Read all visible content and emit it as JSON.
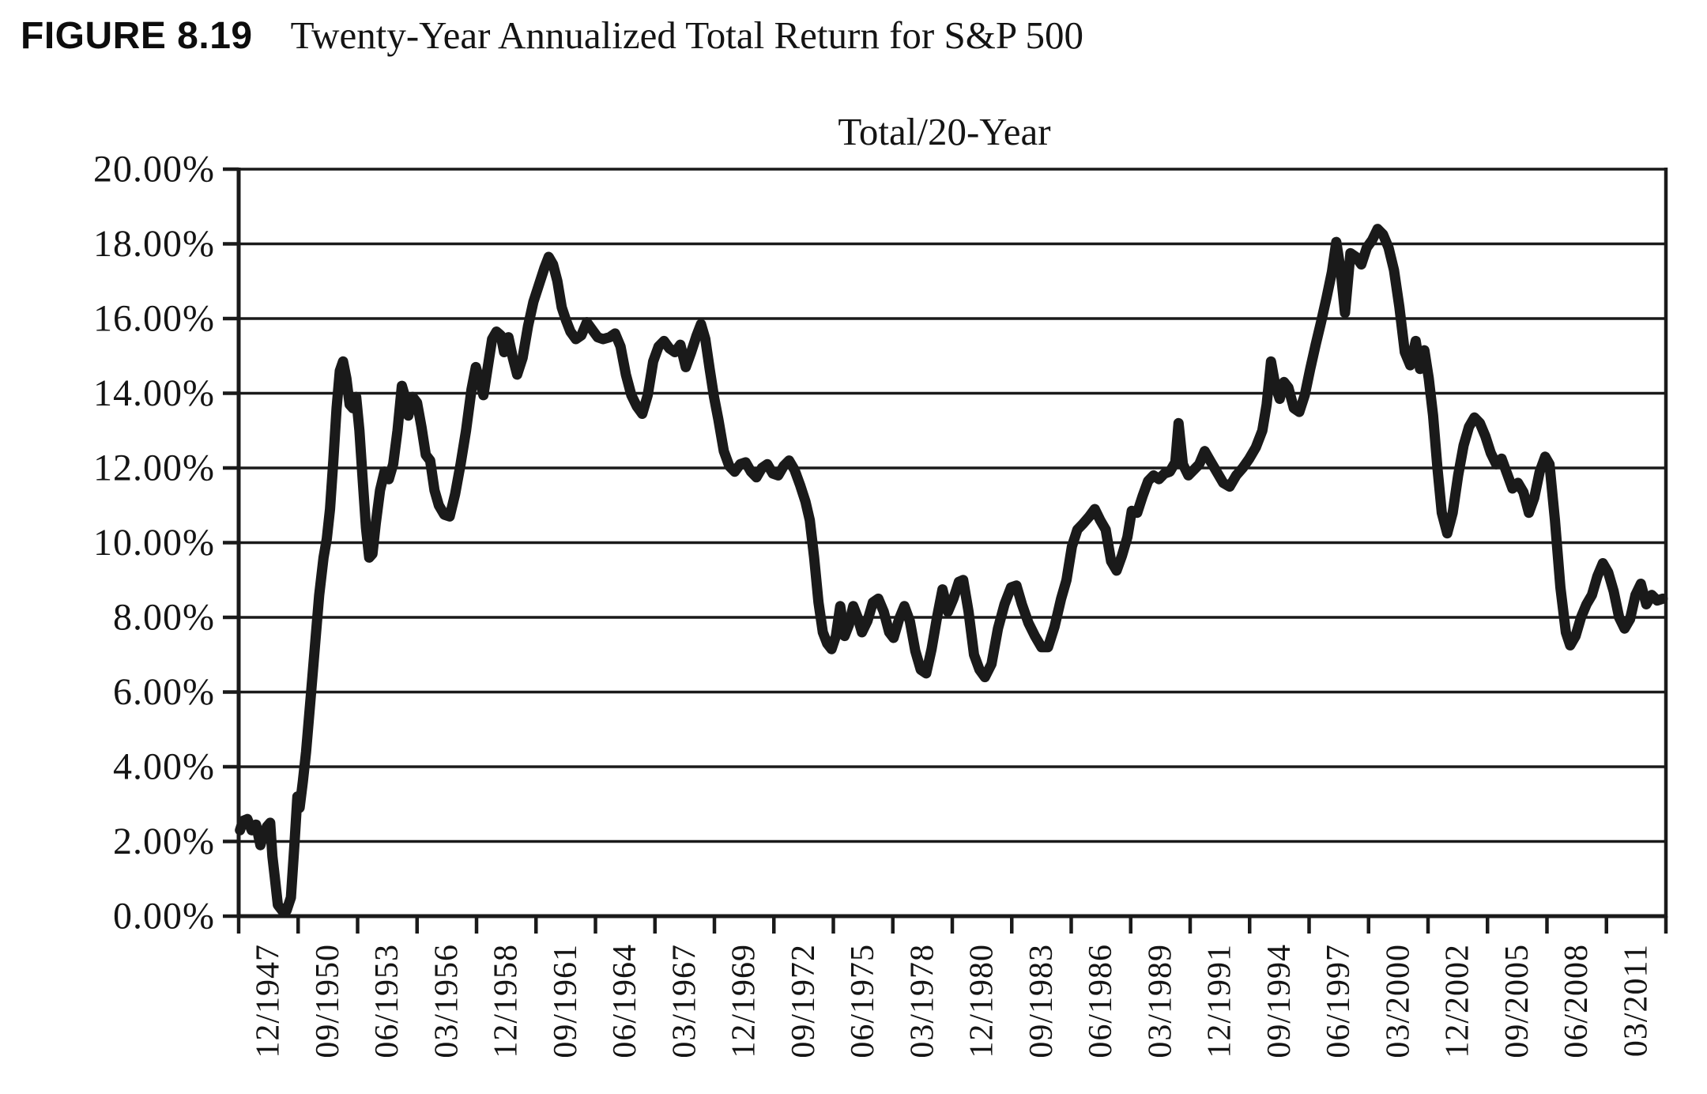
{
  "header": {
    "figure_label": "FIGURE 8.19",
    "title": "Twenty-Year Annualized Total Return for S&P 500"
  },
  "chart_data": {
    "type": "line",
    "title": "Total/20-Year",
    "series_name": "Total/20-Year",
    "xlabel": "",
    "ylabel": "",
    "ylim": [
      0,
      20
    ],
    "ytick_step": 2,
    "ytick_format": "0.00%",
    "ytick_labels": [
      "0.00%",
      "2.00%",
      "4.00%",
      "6.00%",
      "8.00%",
      "10.00%",
      "12.00%",
      "14.00%",
      "16.00%",
      "18.00%",
      "20.00%"
    ],
    "grid": "horizontal",
    "legend": "none",
    "line_color": "#1a1a1a",
    "ink_color": "#1a1a1a",
    "background_color": "#ffffff",
    "x_unit": "decimal_year",
    "xlim": [
      1947.9,
      2013.5
    ],
    "x_label_rotation": -90,
    "x_tick_labels": [
      "12/1947",
      "09/1950",
      "06/1953",
      "03/1956",
      "12/1958",
      "09/1961",
      "06/1964",
      "03/1967",
      "12/1969",
      "09/1972",
      "06/1975",
      "03/1978",
      "12/1980",
      "09/1983",
      "06/1986",
      "03/1989",
      "12/1991",
      "09/1994",
      "06/1997",
      "03/2000",
      "12/2002",
      "09/2005",
      "06/2008",
      "03/2011"
    ],
    "points": [
      [
        1947.96,
        2.3
      ],
      [
        1948.1,
        2.55
      ],
      [
        1948.3,
        2.6
      ],
      [
        1948.5,
        2.3
      ],
      [
        1948.7,
        2.45
      ],
      [
        1948.9,
        1.9
      ],
      [
        1949.05,
        2.2
      ],
      [
        1949.2,
        2.4
      ],
      [
        1949.35,
        2.5
      ],
      [
        1949.45,
        1.6
      ],
      [
        1949.55,
        1.1
      ],
      [
        1949.7,
        0.3
      ],
      [
        1949.9,
        0.15
      ],
      [
        1950.1,
        0.15
      ],
      [
        1950.3,
        0.5
      ],
      [
        1950.45,
        1.8
      ],
      [
        1950.6,
        3.2
      ],
      [
        1950.7,
        2.9
      ],
      [
        1950.85,
        3.6
      ],
      [
        1951.0,
        4.4
      ],
      [
        1951.2,
        5.8
      ],
      [
        1951.4,
        7.2
      ],
      [
        1951.6,
        8.6
      ],
      [
        1951.8,
        9.6
      ],
      [
        1951.95,
        10.1
      ],
      [
        1952.1,
        10.9
      ],
      [
        1952.25,
        12.2
      ],
      [
        1952.4,
        13.6
      ],
      [
        1952.55,
        14.6
      ],
      [
        1952.7,
        14.85
      ],
      [
        1952.85,
        14.4
      ],
      [
        1953.0,
        13.7
      ],
      [
        1953.15,
        13.6
      ],
      [
        1953.3,
        13.9
      ],
      [
        1953.45,
        13.0
      ],
      [
        1953.6,
        11.7
      ],
      [
        1953.75,
        10.4
      ],
      [
        1953.9,
        9.6
      ],
      [
        1954.05,
        9.7
      ],
      [
        1954.2,
        10.5
      ],
      [
        1954.4,
        11.4
      ],
      [
        1954.6,
        11.9
      ],
      [
        1954.8,
        11.7
      ],
      [
        1955.0,
        12.1
      ],
      [
        1955.2,
        13.0
      ],
      [
        1955.4,
        14.2
      ],
      [
        1955.55,
        13.9
      ],
      [
        1955.7,
        13.4
      ],
      [
        1955.9,
        13.9
      ],
      [
        1956.1,
        13.75
      ],
      [
        1956.3,
        13.1
      ],
      [
        1956.5,
        12.35
      ],
      [
        1956.7,
        12.2
      ],
      [
        1956.9,
        11.4
      ],
      [
        1957.1,
        11.0
      ],
      [
        1957.35,
        10.75
      ],
      [
        1957.6,
        10.7
      ],
      [
        1957.85,
        11.3
      ],
      [
        1958.1,
        12.1
      ],
      [
        1958.35,
        13.0
      ],
      [
        1958.6,
        14.1
      ],
      [
        1958.8,
        14.7
      ],
      [
        1959.0,
        14.3
      ],
      [
        1959.15,
        13.95
      ],
      [
        1959.35,
        14.7
      ],
      [
        1959.55,
        15.45
      ],
      [
        1959.75,
        15.65
      ],
      [
        1959.95,
        15.55
      ],
      [
        1960.1,
        15.1
      ],
      [
        1960.3,
        15.5
      ],
      [
        1960.5,
        14.95
      ],
      [
        1960.7,
        14.5
      ],
      [
        1960.95,
        14.95
      ],
      [
        1961.2,
        15.8
      ],
      [
        1961.45,
        16.45
      ],
      [
        1961.7,
        16.9
      ],
      [
        1961.95,
        17.35
      ],
      [
        1962.15,
        17.65
      ],
      [
        1962.35,
        17.45
      ],
      [
        1962.55,
        17.0
      ],
      [
        1962.75,
        16.3
      ],
      [
        1962.95,
        15.95
      ],
      [
        1963.15,
        15.65
      ],
      [
        1963.4,
        15.45
      ],
      [
        1963.65,
        15.55
      ],
      [
        1963.9,
        15.9
      ],
      [
        1964.15,
        15.7
      ],
      [
        1964.4,
        15.5
      ],
      [
        1964.65,
        15.45
      ],
      [
        1964.95,
        15.5
      ],
      [
        1965.2,
        15.6
      ],
      [
        1965.45,
        15.25
      ],
      [
        1965.7,
        14.5
      ],
      [
        1965.95,
        13.95
      ],
      [
        1966.2,
        13.65
      ],
      [
        1966.45,
        13.45
      ],
      [
        1966.7,
        13.95
      ],
      [
        1966.95,
        14.85
      ],
      [
        1967.2,
        15.25
      ],
      [
        1967.45,
        15.4
      ],
      [
        1967.7,
        15.2
      ],
      [
        1967.95,
        15.1
      ],
      [
        1968.2,
        15.3
      ],
      [
        1968.45,
        14.7
      ],
      [
        1968.7,
        15.1
      ],
      [
        1968.95,
        15.55
      ],
      [
        1969.15,
        15.85
      ],
      [
        1969.35,
        15.45
      ],
      [
        1969.55,
        14.65
      ],
      [
        1969.75,
        13.9
      ],
      [
        1969.95,
        13.3
      ],
      [
        1970.2,
        12.45
      ],
      [
        1970.45,
        12.05
      ],
      [
        1970.7,
        11.9
      ],
      [
        1970.95,
        12.1
      ],
      [
        1971.2,
        12.15
      ],
      [
        1971.45,
        11.9
      ],
      [
        1971.7,
        11.75
      ],
      [
        1971.95,
        12.0
      ],
      [
        1972.2,
        12.1
      ],
      [
        1972.45,
        11.85
      ],
      [
        1972.7,
        11.8
      ],
      [
        1972.95,
        12.05
      ],
      [
        1973.2,
        12.2
      ],
      [
        1973.45,
        11.95
      ],
      [
        1973.7,
        11.55
      ],
      [
        1973.95,
        11.1
      ],
      [
        1974.15,
        10.6
      ],
      [
        1974.35,
        9.6
      ],
      [
        1974.55,
        8.4
      ],
      [
        1974.75,
        7.6
      ],
      [
        1974.95,
        7.3
      ],
      [
        1975.15,
        7.15
      ],
      [
        1975.35,
        7.5
      ],
      [
        1975.55,
        8.3
      ],
      [
        1975.75,
        7.5
      ],
      [
        1975.95,
        7.8
      ],
      [
        1976.15,
        8.3
      ],
      [
        1976.35,
        8.0
      ],
      [
        1976.55,
        7.6
      ],
      [
        1976.8,
        7.9
      ],
      [
        1977.05,
        8.4
      ],
      [
        1977.3,
        8.5
      ],
      [
        1977.55,
        8.15
      ],
      [
        1977.8,
        7.6
      ],
      [
        1978.0,
        7.45
      ],
      [
        1978.25,
        7.95
      ],
      [
        1978.5,
        8.3
      ],
      [
        1978.75,
        7.9
      ],
      [
        1979.0,
        7.1
      ],
      [
        1979.25,
        6.6
      ],
      [
        1979.5,
        6.5
      ],
      [
        1979.75,
        7.15
      ],
      [
        1980.0,
        8.0
      ],
      [
        1980.25,
        8.75
      ],
      [
        1980.5,
        8.15
      ],
      [
        1980.75,
        8.5
      ],
      [
        1981.0,
        8.95
      ],
      [
        1981.2,
        9.0
      ],
      [
        1981.45,
        8.15
      ],
      [
        1981.7,
        7.0
      ],
      [
        1981.95,
        6.6
      ],
      [
        1982.2,
        6.4
      ],
      [
        1982.5,
        6.75
      ],
      [
        1982.8,
        7.7
      ],
      [
        1983.1,
        8.35
      ],
      [
        1983.4,
        8.8
      ],
      [
        1983.65,
        8.85
      ],
      [
        1983.9,
        8.35
      ],
      [
        1984.2,
        7.85
      ],
      [
        1984.5,
        7.5
      ],
      [
        1984.8,
        7.2
      ],
      [
        1985.1,
        7.2
      ],
      [
        1985.4,
        7.75
      ],
      [
        1985.7,
        8.5
      ],
      [
        1985.95,
        9.0
      ],
      [
        1986.2,
        9.9
      ],
      [
        1986.45,
        10.35
      ],
      [
        1986.7,
        10.5
      ],
      [
        1987.0,
        10.7
      ],
      [
        1987.25,
        10.9
      ],
      [
        1987.5,
        10.6
      ],
      [
        1987.75,
        10.35
      ],
      [
        1988.0,
        9.5
      ],
      [
        1988.25,
        9.25
      ],
      [
        1988.5,
        9.65
      ],
      [
        1988.75,
        10.15
      ],
      [
        1988.95,
        10.85
      ],
      [
        1989.2,
        10.8
      ],
      [
        1989.45,
        11.25
      ],
      [
        1989.7,
        11.65
      ],
      [
        1989.95,
        11.8
      ],
      [
        1990.2,
        11.7
      ],
      [
        1990.45,
        11.85
      ],
      [
        1990.7,
        11.9
      ],
      [
        1990.95,
        12.15
      ],
      [
        1991.1,
        13.2
      ],
      [
        1991.3,
        12.1
      ],
      [
        1991.55,
        11.8
      ],
      [
        1991.8,
        11.95
      ],
      [
        1992.05,
        12.1
      ],
      [
        1992.3,
        12.45
      ],
      [
        1992.55,
        12.2
      ],
      [
        1992.85,
        11.9
      ],
      [
        1993.15,
        11.6
      ],
      [
        1993.45,
        11.5
      ],
      [
        1993.75,
        11.8
      ],
      [
        1994.05,
        12.0
      ],
      [
        1994.35,
        12.25
      ],
      [
        1994.65,
        12.55
      ],
      [
        1994.95,
        13.0
      ],
      [
        1995.15,
        13.7
      ],
      [
        1995.35,
        14.85
      ],
      [
        1995.55,
        14.2
      ],
      [
        1995.75,
        13.85
      ],
      [
        1995.95,
        14.3
      ],
      [
        1996.15,
        14.15
      ],
      [
        1996.4,
        13.6
      ],
      [
        1996.65,
        13.5
      ],
      [
        1996.9,
        13.95
      ],
      [
        1997.15,
        14.65
      ],
      [
        1997.4,
        15.3
      ],
      [
        1997.65,
        15.9
      ],
      [
        1997.9,
        16.55
      ],
      [
        1998.15,
        17.25
      ],
      [
        1998.35,
        18.05
      ],
      [
        1998.55,
        17.3
      ],
      [
        1998.75,
        16.15
      ],
      [
        1999.0,
        17.75
      ],
      [
        1999.25,
        17.65
      ],
      [
        1999.5,
        17.45
      ],
      [
        1999.75,
        17.9
      ],
      [
        2000.0,
        18.1
      ],
      [
        2000.25,
        18.4
      ],
      [
        2000.5,
        18.25
      ],
      [
        2000.75,
        17.9
      ],
      [
        2001.0,
        17.3
      ],
      [
        2001.25,
        16.3
      ],
      [
        2001.5,
        15.1
      ],
      [
        2001.75,
        14.75
      ],
      [
        2002.0,
        15.4
      ],
      [
        2002.2,
        14.65
      ],
      [
        2002.4,
        15.15
      ],
      [
        2002.6,
        14.4
      ],
      [
        2002.8,
        13.4
      ],
      [
        2003.0,
        12.0
      ],
      [
        2003.2,
        10.8
      ],
      [
        2003.45,
        10.25
      ],
      [
        2003.7,
        10.8
      ],
      [
        2003.95,
        11.8
      ],
      [
        2004.2,
        12.6
      ],
      [
        2004.45,
        13.1
      ],
      [
        2004.7,
        13.35
      ],
      [
        2004.95,
        13.2
      ],
      [
        2005.2,
        12.85
      ],
      [
        2005.45,
        12.4
      ],
      [
        2005.7,
        12.1
      ],
      [
        2005.95,
        12.25
      ],
      [
        2006.2,
        11.85
      ],
      [
        2006.45,
        11.45
      ],
      [
        2006.7,
        11.6
      ],
      [
        2006.95,
        11.35
      ],
      [
        2007.2,
        10.8
      ],
      [
        2007.45,
        11.2
      ],
      [
        2007.7,
        11.9
      ],
      [
        2007.95,
        12.3
      ],
      [
        2008.15,
        12.1
      ],
      [
        2008.4,
        10.6
      ],
      [
        2008.65,
        8.8
      ],
      [
        2008.9,
        7.6
      ],
      [
        2009.1,
        7.25
      ],
      [
        2009.35,
        7.5
      ],
      [
        2009.6,
        8.0
      ],
      [
        2009.85,
        8.35
      ],
      [
        2010.1,
        8.6
      ],
      [
        2010.35,
        9.1
      ],
      [
        2010.6,
        9.45
      ],
      [
        2010.85,
        9.2
      ],
      [
        2011.1,
        8.7
      ],
      [
        2011.35,
        8.0
      ],
      [
        2011.6,
        7.7
      ],
      [
        2011.85,
        7.95
      ],
      [
        2012.1,
        8.6
      ],
      [
        2012.35,
        8.9
      ],
      [
        2012.6,
        8.35
      ],
      [
        2012.85,
        8.6
      ],
      [
        2013.1,
        8.45
      ],
      [
        2013.35,
        8.5
      ]
    ]
  }
}
